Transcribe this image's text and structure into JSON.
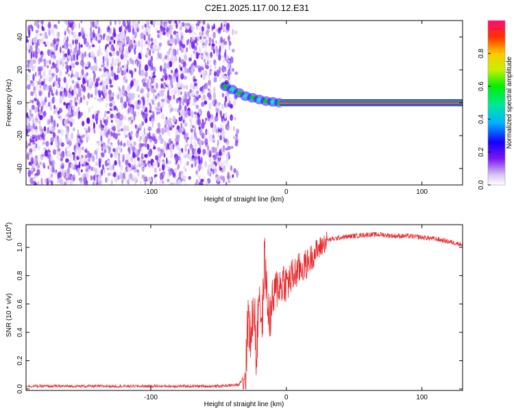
{
  "title": "C2E1.2025.117.00.12.E31",
  "chart_data": [
    {
      "type": "heatmap",
      "xlabel": "Height of straight line (km)",
      "ylabel": "Frequency (Hz)",
      "xlim": [
        -192,
        130
      ],
      "ylim": [
        -50,
        50
      ],
      "xticks": [
        -100,
        0,
        100
      ],
      "yticks": [
        -40,
        -20,
        0,
        20,
        40
      ],
      "grid": false,
      "noise_region_x": [
        -192,
        -42
      ],
      "transition_region_x": [
        -42,
        -5
      ],
      "signal_line": {
        "frequency": 0,
        "x_start": -5,
        "x_end": 130,
        "points": [
          {
            "x": -45,
            "y": 10
          },
          {
            "x": -40,
            "y": 8
          },
          {
            "x": -35,
            "y": 6
          },
          {
            "x": -30,
            "y": 4
          },
          {
            "x": -25,
            "y": 3
          },
          {
            "x": -20,
            "y": 2
          },
          {
            "x": -15,
            "y": 1
          },
          {
            "x": -10,
            "y": 0.5
          },
          {
            "x": -5,
            "y": 0
          }
        ]
      },
      "colorbar": {
        "label": "Normalized spectral amplitude",
        "range": [
          0,
          1
        ],
        "ticks": [
          0.0,
          0.2,
          0.4,
          0.6,
          0.8
        ]
      }
    },
    {
      "type": "line",
      "xlabel": "Height of straight line (km)",
      "ylabel": "SNR (10 * v/v)",
      "y_multiplier": "(x10",
      "y_multiplier_exp": "4",
      "y_multiplier_close": ")",
      "xlim": [
        -192,
        130
      ],
      "ylim": [
        -0.01,
        1.16
      ],
      "xticks": [
        -100,
        0,
        100
      ],
      "yticks": [
        0.0,
        0.2,
        0.4,
        0.6,
        0.8,
        1.0
      ],
      "grid": false,
      "color": "#e8282b",
      "series": [
        {
          "x": [
            -192,
            -150,
            -100,
            -50,
            -35,
            -30,
            -28,
            -26,
            -24,
            -22,
            -20,
            -18,
            -16,
            -14,
            -12,
            -10,
            -8,
            -6,
            -4,
            -2,
            0,
            5,
            10,
            15,
            20,
            25,
            30,
            40,
            50,
            60,
            70,
            80,
            90,
            100,
            110,
            120,
            130
          ],
          "y": [
            0.02,
            0.02,
            0.02,
            0.02,
            0.03,
            0.12,
            0.55,
            0.3,
            0.65,
            0.2,
            0.75,
            0.4,
            0.95,
            0.6,
            0.5,
            0.62,
            0.68,
            0.75,
            0.72,
            0.78,
            0.74,
            0.8,
            0.85,
            0.88,
            0.95,
            1.0,
            1.05,
            1.07,
            1.08,
            1.09,
            1.09,
            1.08,
            1.08,
            1.07,
            1.06,
            1.04,
            1.02
          ]
        }
      ]
    }
  ]
}
